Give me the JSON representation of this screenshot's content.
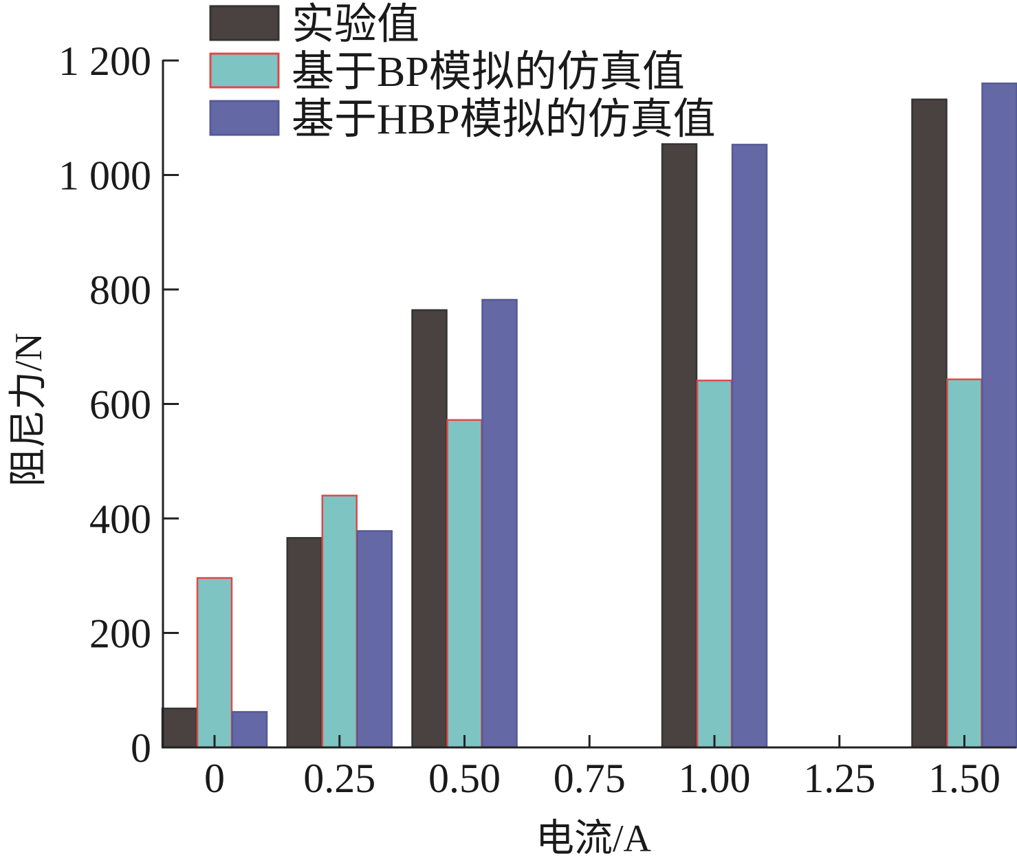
{
  "chart_data": {
    "type": "bar",
    "title": "",
    "xlabel": "电流/A",
    "ylabel": "阻尼力/N",
    "categories": [
      "0",
      "0.25",
      "0.50",
      "0.75",
      "1.00",
      "1.25",
      "1.50"
    ],
    "x": [
      0,
      0.25,
      0.5,
      0.75,
      1.0,
      1.25,
      1.5
    ],
    "ylim": [
      0,
      1200
    ],
    "yticks": [
      0,
      200,
      400,
      600,
      800,
      1000,
      1200
    ],
    "ytick_labels": [
      "0",
      "200",
      "400",
      "600",
      "800",
      "1 000",
      "1 200"
    ],
    "grid": false,
    "legend_position": "top-left",
    "series": [
      {
        "name": "实验值",
        "color": "#494240",
        "edge": "#333333",
        "values": [
          68,
          366,
          764,
          null,
          1054,
          null,
          1132
        ]
      },
      {
        "name": "基于BP模拟的仿真值",
        "color": "#7dc4c3",
        "edge": "#e04848",
        "values": [
          296,
          440,
          572,
          null,
          641,
          null,
          643
        ]
      },
      {
        "name": "基于HBP模拟的仿真值",
        "color": "#6469a5",
        "edge": "#555a96",
        "values": [
          62,
          378,
          782,
          null,
          1053,
          null,
          1160
        ]
      }
    ]
  }
}
